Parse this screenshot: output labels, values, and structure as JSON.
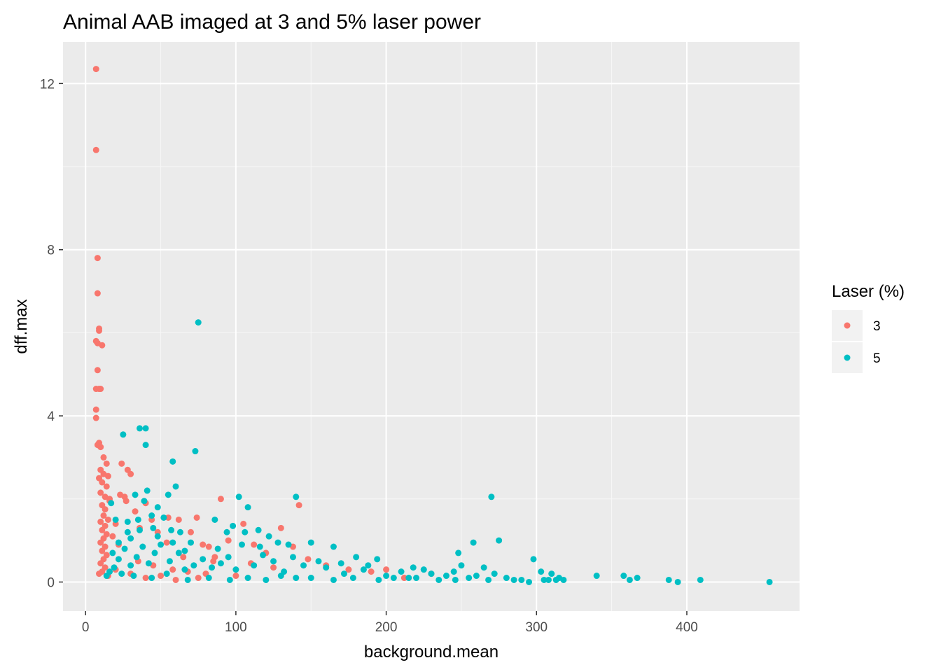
{
  "chart_data": {
    "type": "scatter",
    "title": "Animal AAB imaged at 3 and 5% laser power",
    "xlabel": "background.mean",
    "ylabel": "dff.max",
    "xlim": [
      -15,
      475
    ],
    "ylim": [
      -0.7,
      13.0
    ],
    "xticks": [
      0,
      100,
      200,
      300,
      400
    ],
    "yticks": [
      0,
      4,
      8,
      12
    ],
    "x_tick_labels": [
      "0",
      "100",
      "200",
      "300",
      "400"
    ],
    "y_tick_labels": [
      "0",
      "4",
      "8",
      "12"
    ],
    "grid": true,
    "legend": {
      "title": "Laser (%)",
      "position": "right"
    },
    "series": [
      {
        "name": "3",
        "color": "#F8766D",
        "points": [
          [
            7,
            12.35
          ],
          [
            7,
            10.4
          ],
          [
            8,
            7.8
          ],
          [
            8,
            6.95
          ],
          [
            9,
            6.1
          ],
          [
            9,
            6.05
          ],
          [
            7,
            5.8
          ],
          [
            8,
            5.75
          ],
          [
            11,
            5.7
          ],
          [
            8,
            5.1
          ],
          [
            7,
            4.65
          ],
          [
            9,
            4.65
          ],
          [
            10,
            4.65
          ],
          [
            7,
            4.15
          ],
          [
            7,
            3.95
          ],
          [
            8,
            3.3
          ],
          [
            9,
            3.35
          ],
          [
            10,
            3.25
          ],
          [
            12,
            3.0
          ],
          [
            14,
            2.85
          ],
          [
            10,
            2.7
          ],
          [
            12,
            2.6
          ],
          [
            15,
            2.55
          ],
          [
            9,
            2.5
          ],
          [
            11,
            2.4
          ],
          [
            14,
            2.3
          ],
          [
            10,
            2.15
          ],
          [
            13,
            2.05
          ],
          [
            16,
            1.95
          ],
          [
            11,
            1.85
          ],
          [
            13,
            1.75
          ],
          [
            12,
            1.6
          ],
          [
            15,
            1.5
          ],
          [
            10,
            1.45
          ],
          [
            13,
            1.35
          ],
          [
            11,
            1.25
          ],
          [
            14,
            1.15
          ],
          [
            12,
            1.05
          ],
          [
            10,
            0.95
          ],
          [
            13,
            0.85
          ],
          [
            11,
            0.75
          ],
          [
            14,
            0.65
          ],
          [
            12,
            0.55
          ],
          [
            10,
            0.45
          ],
          [
            13,
            0.35
          ],
          [
            11,
            0.25
          ],
          [
            9,
            0.2
          ],
          [
            15,
            0.15
          ],
          [
            16,
            2.0
          ],
          [
            18,
            1.1
          ],
          [
            20,
            1.4
          ],
          [
            22,
            0.9
          ],
          [
            24,
            2.85
          ],
          [
            23,
            2.1
          ],
          [
            26,
            2.05
          ],
          [
            28,
            2.7
          ],
          [
            30,
            2.6
          ],
          [
            27,
            1.95
          ],
          [
            33,
            1.7
          ],
          [
            36,
            1.3
          ],
          [
            40,
            1.9
          ],
          [
            44,
            1.5
          ],
          [
            48,
            1.2
          ],
          [
            55,
            1.55
          ],
          [
            54,
            0.95
          ],
          [
            62,
            1.5
          ],
          [
            70,
            1.2
          ],
          [
            74,
            1.55
          ],
          [
            78,
            0.9
          ],
          [
            82,
            0.85
          ],
          [
            86,
            0.6
          ],
          [
            90,
            2.0
          ],
          [
            95,
            1.0
          ],
          [
            105,
            1.4
          ],
          [
            112,
            0.9
          ],
          [
            120,
            0.7
          ],
          [
            130,
            1.3
          ],
          [
            138,
            0.85
          ],
          [
            142,
            1.85
          ],
          [
            148,
            0.55
          ],
          [
            160,
            0.4
          ],
          [
            175,
            0.3
          ],
          [
            190,
            0.25
          ],
          [
            200,
            0.3
          ],
          [
            212,
            0.1
          ],
          [
            230,
            0.2
          ],
          [
            35,
            0.5
          ],
          [
            45,
            0.4
          ],
          [
            58,
            0.3
          ],
          [
            68,
            0.25
          ],
          [
            80,
            0.2
          ],
          [
            100,
            0.15
          ],
          [
            50,
            0.15
          ],
          [
            30,
            0.2
          ],
          [
            20,
            0.3
          ],
          [
            65,
            0.6
          ],
          [
            85,
            0.5
          ],
          [
            110,
            0.45
          ],
          [
            125,
            0.35
          ],
          [
            75,
            0.1
          ],
          [
            40,
            0.1
          ],
          [
            60,
            0.05
          ]
        ]
      },
      {
        "name": "5",
        "color": "#00BFC4",
        "points": [
          [
            75,
            6.25
          ],
          [
            36,
            3.7
          ],
          [
            40,
            3.7
          ],
          [
            25,
            3.55
          ],
          [
            40,
            3.3
          ],
          [
            73,
            3.15
          ],
          [
            58,
            2.9
          ],
          [
            60,
            2.3
          ],
          [
            41,
            2.2
          ],
          [
            33,
            2.1
          ],
          [
            39,
            1.95
          ],
          [
            48,
            1.8
          ],
          [
            55,
            2.1
          ],
          [
            102,
            2.05
          ],
          [
            140,
            2.05
          ],
          [
            270,
            2.05
          ],
          [
            108,
            1.8
          ],
          [
            17,
            1.9
          ],
          [
            20,
            1.5
          ],
          [
            28,
            1.45
          ],
          [
            35,
            1.5
          ],
          [
            44,
            1.6
          ],
          [
            52,
            1.55
          ],
          [
            57,
            1.25
          ],
          [
            63,
            1.2
          ],
          [
            70,
            0.95
          ],
          [
            86,
            1.5
          ],
          [
            94,
            1.2
          ],
          [
            98,
            1.35
          ],
          [
            106,
            1.2
          ],
          [
            115,
            1.25
          ],
          [
            122,
            1.1
          ],
          [
            128,
            0.95
          ],
          [
            135,
            0.9
          ],
          [
            150,
            0.95
          ],
          [
            165,
            0.85
          ],
          [
            180,
            0.6
          ],
          [
            194,
            0.55
          ],
          [
            218,
            0.35
          ],
          [
            248,
            0.7
          ],
          [
            258,
            0.95
          ],
          [
            275,
            1.0
          ],
          [
            250,
            0.4
          ],
          [
            265,
            0.35
          ],
          [
            280,
            0.1
          ],
          [
            298,
            0.55
          ],
          [
            303,
            0.25
          ],
          [
            310,
            0.2
          ],
          [
            318,
            0.05
          ],
          [
            340,
            0.15
          ],
          [
            358,
            0.15
          ],
          [
            362,
            0.05
          ],
          [
            367,
            0.1
          ],
          [
            388,
            0.05
          ],
          [
            394,
            0.0
          ],
          [
            409,
            0.05
          ],
          [
            455,
            0.0
          ],
          [
            290,
            0.05
          ],
          [
            295,
            0.0
          ],
          [
            305,
            0.05
          ],
          [
            315,
            0.1
          ],
          [
            230,
            0.2
          ],
          [
            240,
            0.15
          ],
          [
            225,
            0.3
          ],
          [
            210,
            0.25
          ],
          [
            205,
            0.1
          ],
          [
            185,
            0.3
          ],
          [
            172,
            0.2
          ],
          [
            160,
            0.35
          ],
          [
            155,
            0.5
          ],
          [
            145,
            0.4
          ],
          [
            140,
            0.1
          ],
          [
            132,
            0.25
          ],
          [
            125,
            0.5
          ],
          [
            118,
            0.65
          ],
          [
            112,
            0.4
          ],
          [
            100,
            0.3
          ],
          [
            95,
            0.6
          ],
          [
            90,
            0.45
          ],
          [
            84,
            0.35
          ],
          [
            78,
            0.55
          ],
          [
            72,
            0.4
          ],
          [
            66,
            0.3
          ],
          [
            62,
            0.7
          ],
          [
            56,
            0.5
          ],
          [
            50,
            0.9
          ],
          [
            46,
            0.7
          ],
          [
            42,
            0.45
          ],
          [
            38,
            0.85
          ],
          [
            34,
            0.6
          ],
          [
            30,
            1.05
          ],
          [
            26,
            0.8
          ],
          [
            22,
            0.55
          ],
          [
            19,
            0.35
          ],
          [
            16,
            0.25
          ],
          [
            14,
            0.15
          ],
          [
            24,
            0.2
          ],
          [
            32,
            0.15
          ],
          [
            44,
            0.1
          ],
          [
            54,
            0.2
          ],
          [
            68,
            0.05
          ],
          [
            82,
            0.1
          ],
          [
            96,
            0.05
          ],
          [
            108,
            0.1
          ],
          [
            120,
            0.05
          ],
          [
            130,
            0.15
          ],
          [
            150,
            0.1
          ],
          [
            165,
            0.05
          ],
          [
            178,
            0.1
          ],
          [
            195,
            0.05
          ],
          [
            255,
            0.1
          ],
          [
            268,
            0.05
          ],
          [
            235,
            0.05
          ],
          [
            215,
            0.1
          ],
          [
            28,
            1.2
          ],
          [
            36,
            1.25
          ],
          [
            48,
            1.1
          ],
          [
            58,
            0.95
          ],
          [
            45,
            1.3
          ],
          [
            30,
            0.4
          ],
          [
            18,
            0.7
          ],
          [
            22,
            0.95
          ],
          [
            66,
            0.75
          ],
          [
            88,
            0.8
          ],
          [
            104,
            0.9
          ],
          [
            116,
            0.85
          ],
          [
            138,
            0.6
          ],
          [
            170,
            0.45
          ],
          [
            188,
            0.4
          ],
          [
            200,
            0.15
          ],
          [
            220,
            0.1
          ],
          [
            245,
            0.25
          ],
          [
            260,
            0.15
          ],
          [
            272,
            0.2
          ],
          [
            285,
            0.05
          ],
          [
            308,
            0.05
          ],
          [
            313,
            0.05
          ],
          [
            246,
            0.05
          ]
        ]
      }
    ]
  }
}
